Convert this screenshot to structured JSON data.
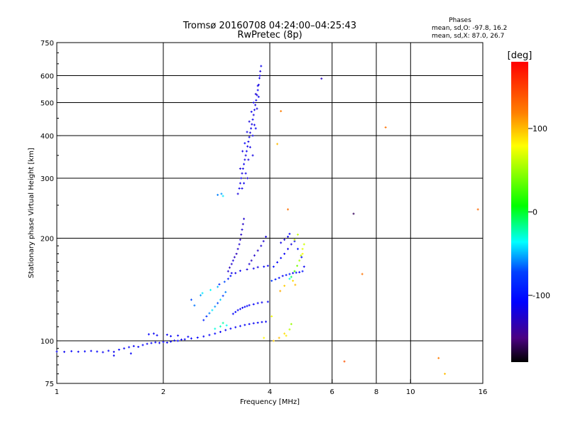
{
  "header": {
    "title": "Tromsø 20160708 04:24:00–04:25:43",
    "subtitle": "RwPretec (8p)"
  },
  "phase_box": {
    "heading": "Phases",
    "line_o": "mean, sd,O: -97.8, 16.2",
    "line_x": "mean, sd,X:  87.0, 26.7"
  },
  "colorbar": {
    "label": "[deg]",
    "min": -180,
    "max": 180,
    "ticks": [
      {
        "value": 100,
        "label": "100"
      },
      {
        "value": 0,
        "label": "0"
      },
      {
        "value": -100,
        "label": "-100"
      }
    ]
  },
  "chart_data": {
    "type": "scatter",
    "title": "Tromsø 20160708 04:24:00–04:25:43",
    "subtitle": "RwPretec (8p)",
    "xlabel": "Frequency [MHz]",
    "ylabel": "Stationary phase Virtual Height [km]",
    "x_scale": "log",
    "y_scale": "log",
    "xlim": [
      1,
      16
    ],
    "ylim": [
      75,
      750
    ],
    "x_ticks": [
      {
        "value": 1,
        "label": "1"
      },
      {
        "value": 2,
        "label": "2"
      },
      {
        "value": 4,
        "label": "4"
      },
      {
        "value": 6,
        "label": "6"
      },
      {
        "value": 8,
        "label": "8"
      },
      {
        "value": 10,
        "label": "10"
      },
      {
        "value": 16,
        "label": "16"
      }
    ],
    "x_grid": [
      2,
      4,
      6,
      8,
      10
    ],
    "y_ticks": [
      {
        "value": 75,
        "label": "75"
      },
      {
        "value": 100,
        "label": "100"
      },
      {
        "value": 200,
        "label": "200"
      },
      {
        "value": 300,
        "label": "300"
      },
      {
        "value": 400,
        "label": "400"
      },
      {
        "value": 500,
        "label": "500"
      },
      {
        "value": 600,
        "label": "600"
      },
      {
        "value": 750,
        "label": "750"
      }
    ],
    "y_grid": [
      100,
      200,
      300,
      400,
      500,
      600
    ],
    "grid": true,
    "point_color": "phase in degrees, mapped on the colorbar from -180 to 180",
    "points": [
      [
        1.0,
        93.0,
        -110
      ],
      [
        1.05,
        92.8,
        -112
      ],
      [
        1.1,
        93.2,
        -108
      ],
      [
        1.15,
        92.9,
        -113
      ],
      [
        1.2,
        93.1,
        -109
      ],
      [
        1.25,
        93.4,
        -111
      ],
      [
        1.3,
        93.0,
        -107
      ],
      [
        1.35,
        92.6,
        -112
      ],
      [
        1.4,
        93.5,
        -110
      ],
      [
        1.45,
        92.8,
        -114
      ],
      [
        1.5,
        94.2,
        -108
      ],
      [
        1.55,
        95.0,
        -111
      ],
      [
        1.6,
        95.8,
        -109
      ],
      [
        1.65,
        96.5,
        -112
      ],
      [
        1.7,
        96.0,
        -110
      ],
      [
        1.75,
        97.2,
        -108
      ],
      [
        1.8,
        98.0,
        -113
      ],
      [
        1.85,
        98.5,
        -110
      ],
      [
        1.9,
        99.0,
        -109
      ],
      [
        1.95,
        98.6,
        -112
      ],
      [
        2.0,
        99.2,
        -111
      ],
      [
        2.05,
        98.8,
        -108
      ],
      [
        2.1,
        99.5,
        -110
      ],
      [
        2.15,
        100.2,
        -112
      ],
      [
        2.2,
        100.0,
        -109
      ],
      [
        2.25,
        100.8,
        -111
      ],
      [
        2.3,
        101.0,
        -113
      ],
      [
        2.4,
        101.6,
        -110
      ],
      [
        2.5,
        102.2,
        -108
      ],
      [
        2.6,
        103.0,
        -112
      ],
      [
        2.7,
        104.0,
        -110
      ],
      [
        2.8,
        105.0,
        -109
      ],
      [
        2.9,
        106.2,
        -111
      ],
      [
        3.0,
        107.5,
        -113
      ],
      [
        3.1,
        108.6,
        -110
      ],
      [
        3.2,
        109.6,
        -112
      ],
      [
        3.3,
        110.5,
        -108
      ],
      [
        3.4,
        111.3,
        -111
      ],
      [
        3.5,
        112.0,
        -110
      ],
      [
        3.6,
        112.6,
        -113
      ],
      [
        3.7,
        113.0,
        -109
      ],
      [
        3.8,
        113.5,
        -111
      ],
      [
        3.9,
        113.8,
        -112
      ],
      [
        1.45,
        90.5,
        -112
      ],
      [
        1.62,
        91.8,
        -110
      ],
      [
        1.82,
        104.5,
        -108
      ],
      [
        1.88,
        105.0,
        -112
      ],
      [
        1.92,
        103.8,
        -110
      ],
      [
        2.05,
        104.2,
        -111
      ],
      [
        2.1,
        103.2,
        -109
      ],
      [
        2.2,
        103.6,
        -113
      ],
      [
        2.35,
        102.8,
        -110
      ],
      [
        2.8,
        108.5,
        -30
      ],
      [
        2.9,
        110.2,
        -25
      ],
      [
        2.95,
        112.8,
        -20
      ],
      [
        3.02,
        111.0,
        -35
      ],
      [
        2.6,
        115.0,
        -90
      ],
      [
        2.65,
        118.0,
        -80
      ],
      [
        2.7,
        120.5,
        -60
      ],
      [
        2.75,
        123.0,
        -40
      ],
      [
        2.8,
        126.0,
        -55
      ],
      [
        2.85,
        129.0,
        -70
      ],
      [
        2.9,
        132.0,
        -45
      ],
      [
        2.95,
        135.5,
        -75
      ],
      [
        3.0,
        139.0,
        -60
      ],
      [
        2.72,
        141.0,
        -35
      ],
      [
        2.85,
        144.0,
        -50
      ],
      [
        2.88,
        146.5,
        -85
      ],
      [
        2.98,
        149.0,
        -70
      ],
      [
        3.05,
        152.0,
        -95
      ],
      [
        3.1,
        155.0,
        -100
      ],
      [
        3.12,
        158.0,
        -115
      ],
      [
        2.4,
        132.0,
        -70
      ],
      [
        2.55,
        136.0,
        -55
      ],
      [
        2.58,
        138.0,
        -40
      ],
      [
        2.45,
        127.0,
        -62
      ],
      [
        3.15,
        120.0,
        -110
      ],
      [
        3.2,
        121.5,
        -105
      ],
      [
        3.25,
        123.0,
        -112
      ],
      [
        3.3,
        124.0,
        -108
      ],
      [
        3.35,
        125.0,
        -114
      ],
      [
        3.4,
        125.8,
        -110
      ],
      [
        3.45,
        126.5,
        -106
      ],
      [
        3.5,
        127.2,
        -112
      ],
      [
        3.6,
        128.0,
        -109
      ],
      [
        3.7,
        129.0,
        -111
      ],
      [
        3.8,
        129.6,
        -113
      ],
      [
        3.95,
        130.2,
        -110
      ],
      [
        3.05,
        160.0,
        -125
      ],
      [
        3.08,
        164.0,
        -130
      ],
      [
        3.12,
        168.0,
        -125
      ],
      [
        3.15,
        172.0,
        -120
      ],
      [
        3.18,
        176.0,
        -128
      ],
      [
        3.22,
        180.0,
        -132
      ],
      [
        3.25,
        186.0,
        -126
      ],
      [
        3.28,
        192.0,
        -124
      ],
      [
        3.3,
        198.0,
        -130
      ],
      [
        3.32,
        205.0,
        -127
      ],
      [
        3.34,
        212.0,
        -122
      ],
      [
        3.36,
        220.0,
        -128
      ],
      [
        3.38,
        228.0,
        -125
      ],
      [
        3.2,
        158.0,
        -118
      ],
      [
        3.3,
        160.5,
        -112
      ],
      [
        3.45,
        162.0,
        -120
      ],
      [
        3.6,
        163.0,
        -115
      ],
      [
        3.7,
        164.5,
        -118
      ],
      [
        3.85,
        165.0,
        -110
      ],
      [
        3.95,
        166.0,
        -112
      ],
      [
        3.5,
        168.0,
        -124
      ],
      [
        3.55,
        172.0,
        -130
      ],
      [
        3.62,
        178.0,
        -126
      ],
      [
        3.7,
        184.0,
        -128
      ],
      [
        3.78,
        190.0,
        -122
      ],
      [
        3.84,
        196.0,
        -125
      ],
      [
        3.9,
        202.0,
        -120
      ],
      [
        4.05,
        150.0,
        -80
      ],
      [
        4.15,
        151.5,
        -95
      ],
      [
        4.25,
        153.0,
        -105
      ],
      [
        4.35,
        155.0,
        -110
      ],
      [
        4.45,
        156.0,
        -100
      ],
      [
        4.55,
        157.0,
        -90
      ],
      [
        4.65,
        158.0,
        -112
      ],
      [
        4.75,
        158.5,
        -104
      ],
      [
        4.85,
        159.0,
        -110
      ],
      [
        4.95,
        160.0,
        -98
      ],
      [
        4.1,
        165.0,
        -102
      ],
      [
        4.2,
        170.0,
        -110
      ],
      [
        4.3,
        175.0,
        -108
      ],
      [
        4.4,
        180.0,
        -112
      ],
      [
        4.5,
        186.0,
        -115
      ],
      [
        4.6,
        192.0,
        -120
      ],
      [
        4.7,
        196.0,
        -110
      ],
      [
        4.8,
        186.0,
        -100
      ],
      [
        4.92,
        176.0,
        -105
      ],
      [
        5.0,
        165.0,
        -112
      ],
      [
        4.3,
        194.0,
        -118
      ],
      [
        4.4,
        198.0,
        -122
      ],
      [
        4.5,
        202.0,
        -116
      ],
      [
        4.55,
        206.0,
        -110
      ],
      [
        4.55,
        152.0,
        -30
      ],
      [
        4.6,
        154.0,
        -10
      ],
      [
        4.7,
        160.0,
        25
      ],
      [
        4.78,
        166.0,
        40
      ],
      [
        4.85,
        172.0,
        55
      ],
      [
        4.9,
        178.0,
        60
      ],
      [
        4.95,
        186.0,
        70
      ],
      [
        5.0,
        192.0,
        65
      ],
      [
        4.7,
        198.0,
        60
      ],
      [
        4.8,
        205.0,
        62
      ],
      [
        4.65,
        150.0,
        90
      ],
      [
        4.72,
        146.0,
        100
      ],
      [
        4.4,
        145.0,
        95
      ],
      [
        4.28,
        140.0,
        105
      ],
      [
        4.95,
        180.0,
        80
      ],
      [
        4.6,
        112.0,
        50
      ],
      [
        4.55,
        108.0,
        60
      ],
      [
        4.4,
        105.0,
        90
      ],
      [
        4.25,
        102.0,
        100
      ],
      [
        4.45,
        103.5,
        85
      ],
      [
        3.85,
        102.0,
        80
      ],
      [
        4.1,
        100.0,
        95
      ],
      [
        4.05,
        118.0,
        75
      ],
      [
        3.25,
        270.0,
        -120
      ],
      [
        3.28,
        280.0,
        -115
      ],
      [
        3.3,
        290.0,
        -118
      ],
      [
        3.32,
        300.0,
        -112
      ],
      [
        3.34,
        310.0,
        -120
      ],
      [
        3.36,
        320.0,
        -116
      ],
      [
        3.38,
        330.0,
        -114
      ],
      [
        3.4,
        340.0,
        -118
      ],
      [
        3.42,
        350.0,
        -120
      ],
      [
        3.44,
        360.0,
        -112
      ],
      [
        3.46,
        372.0,
        -116
      ],
      [
        3.48,
        384.0,
        -118
      ],
      [
        3.5,
        396.0,
        -114
      ],
      [
        3.52,
        408.0,
        -120
      ],
      [
        3.54,
        420.0,
        -116
      ],
      [
        3.56,
        432.0,
        -118
      ],
      [
        3.58,
        446.0,
        -112
      ],
      [
        3.6,
        460.0,
        -120
      ],
      [
        3.62,
        476.0,
        -115
      ],
      [
        3.64,
        492.0,
        -118
      ],
      [
        3.66,
        508.0,
        -114
      ],
      [
        3.68,
        526.0,
        -120
      ],
      [
        3.7,
        544.0,
        -112
      ],
      [
        3.72,
        564.0,
        -118
      ],
      [
        3.74,
        590.0,
        -116
      ],
      [
        3.76,
        618.0,
        -120
      ],
      [
        3.78,
        640.0,
        -114
      ],
      [
        3.3,
        320.0,
        -122
      ],
      [
        3.35,
        360.0,
        -118
      ],
      [
        3.4,
        380.0,
        -110
      ],
      [
        3.45,
        410.0,
        -116
      ],
      [
        3.5,
        440.0,
        -120
      ],
      [
        3.55,
        470.0,
        -114
      ],
      [
        3.6,
        500.0,
        -118
      ],
      [
        3.65,
        530.0,
        -122
      ],
      [
        3.7,
        560.0,
        -116
      ],
      [
        3.75,
        600.0,
        -118
      ],
      [
        3.72,
        520.0,
        -112
      ],
      [
        3.68,
        480.0,
        -120
      ],
      [
        3.62,
        430.0,
        -116
      ],
      [
        3.58,
        400.0,
        -114
      ],
      [
        3.52,
        370.0,
        -118
      ],
      [
        3.48,
        340.0,
        -120
      ],
      [
        3.42,
        310.0,
        -116
      ],
      [
        3.38,
        290.0,
        -114
      ],
      [
        3.34,
        280.0,
        -118
      ],
      [
        3.46,
        300.0,
        -122
      ],
      [
        3.58,
        350.0,
        -118
      ],
      [
        3.65,
        420.0,
        -112
      ],
      [
        2.85,
        268.0,
        -60
      ],
      [
        2.92,
        270.0,
        -55
      ],
      [
        2.95,
        266.0,
        -40
      ],
      [
        5.6,
        588.0,
        -130
      ],
      [
        4.3,
        472.0,
        120
      ],
      [
        4.2,
        378.0,
        100
      ],
      [
        4.5,
        243.0,
        125
      ],
      [
        6.9,
        236.0,
        -160
      ],
      [
        7.3,
        157.0,
        125
      ],
      [
        8.5,
        423.0,
        125
      ],
      [
        6.5,
        87.0,
        140
      ],
      [
        12.0,
        89.0,
        120
      ],
      [
        12.5,
        80.0,
        100
      ],
      [
        15.5,
        243.0,
        130
      ]
    ]
  }
}
